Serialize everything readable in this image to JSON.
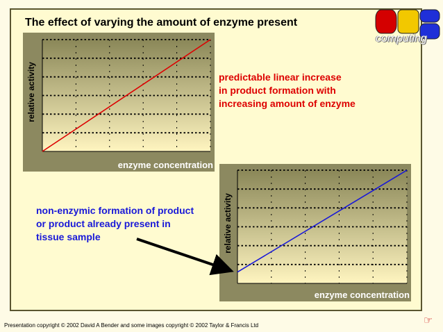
{
  "slide": {
    "title": "The effect of varying the amount of enzyme present",
    "logo": {
      "text": "computing",
      "colors": [
        "#d40000",
        "#f2c800",
        "#1f2fd8"
      ]
    },
    "annotation_linear": [
      "predictable linear increase",
      "in product formation with",
      "increasing amount of enzyme"
    ],
    "annotation_nonenzymic": [
      "non-enzymic formation of product",
      "or product already present in",
      "tissue sample"
    ],
    "footer": "Presentation copyright © 2002 David A Bender and some images copyright © 2002 Taylor & Francis Ltd",
    "nav_icon": "pointing-hand-icon",
    "colors": {
      "background": "#fffbd0",
      "plot_gradient_top": "#8a8758",
      "plot_gradient_bottom": "#fff5c0",
      "line1": "#dd0000",
      "line2": "#1818d8",
      "annotation1": "#dd0000",
      "annotation2": "#1818d8"
    }
  },
  "chart_data": [
    {
      "type": "line",
      "title": "",
      "xlabel": "enzyme concentration",
      "ylabel": "relative activity",
      "grid": true,
      "xlim": [
        0,
        5
      ],
      "ylim": [
        0,
        6
      ],
      "series": [
        {
          "x": [
            0,
            5
          ],
          "y": [
            0,
            6
          ]
        }
      ]
    },
    {
      "type": "line",
      "title": "",
      "xlabel": "enzyme concentration",
      "ylabel": "relative activity",
      "grid": true,
      "xlim": [
        0,
        5
      ],
      "ylim": [
        0,
        6
      ],
      "series": [
        {
          "x": [
            0,
            5
          ],
          "y": [
            0.6,
            6
          ]
        }
      ]
    }
  ]
}
